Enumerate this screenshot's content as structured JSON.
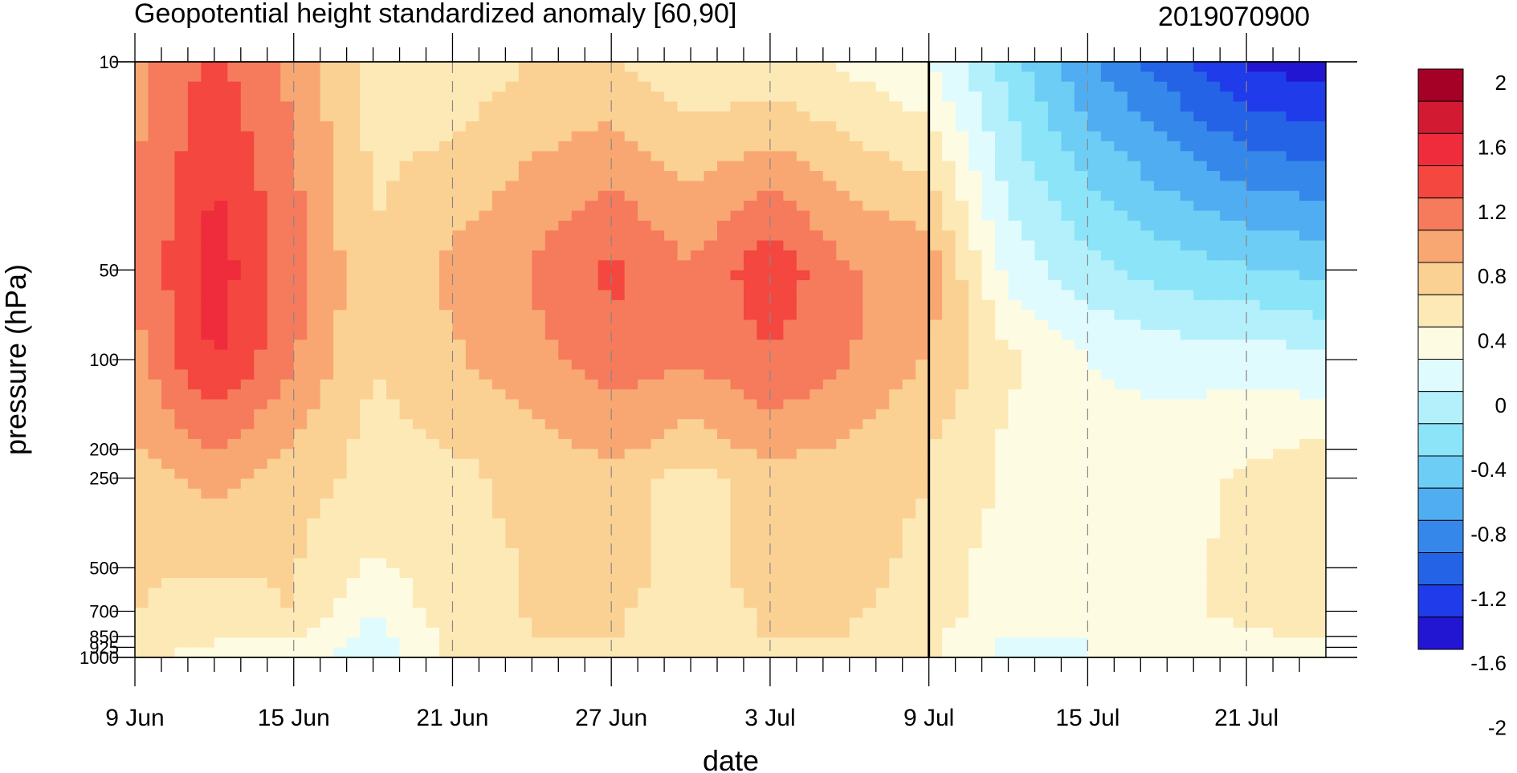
{
  "chart_data": {
    "type": "heatmap",
    "title": "Geopotential height standardized anomaly [60,90]",
    "subtitle": "2019070900",
    "xlabel": "date",
    "ylabel": "pressure (hPa)",
    "y_scale": "log",
    "y_inverted": true,
    "ylim": [
      1000,
      10
    ],
    "xlim": [
      "2019-06-09",
      "2019-07-24"
    ],
    "x_tick_labels": [
      "9 Jun",
      "15 Jun",
      "21 Jun",
      "27 Jun",
      "3 Jul",
      "9 Jul",
      "15 Jul",
      "21 Jul"
    ],
    "x_tick_dates": [
      "2019-06-09",
      "2019-06-15",
      "2019-06-21",
      "2019-06-27",
      "2019-07-03",
      "2019-07-09",
      "2019-07-15",
      "2019-07-21"
    ],
    "y_levels": [
      10,
      50,
      100,
      200,
      250,
      500,
      700,
      850,
      925,
      1000
    ],
    "y_tick_labels": [
      "10",
      "50",
      "100",
      "200",
      "250",
      "500",
      "700",
      "850",
      "925",
      "1000"
    ],
    "analysis_date": "2019-07-09",
    "dates": [
      "2019-06-09",
      "2019-06-12",
      "2019-06-15",
      "2019-06-18",
      "2019-06-21",
      "2019-06-24",
      "2019-06-27",
      "2019-06-30",
      "2019-07-03",
      "2019-07-06",
      "2019-07-09",
      "2019-07-12",
      "2019-07-15",
      "2019-07-18",
      "2019-07-21",
      "2019-07-24"
    ],
    "values": [
      [
        0.9,
        1.3,
        0.9,
        0.4,
        0.3,
        0.5,
        0.5,
        0.3,
        0.3,
        0.2,
        0.0,
        -0.6,
        -1.2,
        -1.6,
        -2.0,
        -2.1
      ],
      [
        1.0,
        1.6,
        1.1,
        0.5,
        0.8,
        1.0,
        1.3,
        1.0,
        1.4,
        1.0,
        0.9,
        -0.1,
        -0.4,
        -0.6,
        -0.7,
        -0.8
      ],
      [
        0.9,
        1.5,
        1.0,
        0.5,
        0.7,
        0.9,
        1.1,
        1.0,
        1.2,
        1.0,
        0.7,
        0.3,
        0.0,
        -0.1,
        -0.1,
        -0.2
      ],
      [
        0.7,
        1.0,
        0.7,
        0.4,
        0.5,
        0.6,
        0.8,
        0.6,
        0.8,
        0.7,
        0.5,
        0.2,
        0.1,
        0.1,
        0.2,
        0.3
      ],
      [
        0.6,
        0.8,
        0.6,
        0.4,
        0.4,
        0.6,
        0.6,
        0.4,
        0.6,
        0.6,
        0.5,
        0.2,
        0.1,
        0.1,
        0.3,
        0.3
      ],
      [
        0.5,
        0.5,
        0.5,
        0.2,
        0.4,
        0.5,
        0.6,
        0.4,
        0.6,
        0.6,
        0.4,
        0.1,
        0.1,
        0.2,
        0.3,
        0.3
      ],
      [
        0.5,
        0.4,
        0.5,
        0.0,
        0.4,
        0.5,
        0.5,
        0.4,
        0.5,
        0.5,
        0.4,
        0.1,
        0.1,
        0.2,
        0.3,
        0.3
      ],
      [
        0.4,
        0.3,
        0.3,
        -0.1,
        0.3,
        0.5,
        0.5,
        0.4,
        0.5,
        0.5,
        0.3,
        0.0,
        0.0,
        0.1,
        0.2,
        0.3
      ],
      [
        0.3,
        0.2,
        0.2,
        -0.2,
        0.3,
        0.4,
        0.4,
        0.3,
        0.4,
        0.4,
        0.3,
        -0.1,
        0.0,
        0.1,
        0.1,
        0.2
      ],
      [
        0.3,
        0.2,
        0.2,
        -0.2,
        0.3,
        0.4,
        0.4,
        0.3,
        0.4,
        0.4,
        0.3,
        -0.1,
        0.0,
        0.1,
        0.1,
        0.2
      ]
    ],
    "colorbar": {
      "tick_labels": [
        "2",
        "1.6",
        "1.2",
        "0.8",
        "0.4",
        "0",
        "-0.4",
        "-0.8",
        "-1.2",
        "-1.6",
        "-2"
      ],
      "colors": [
        "#a50026",
        "#d21a33",
        "#ee2c3c",
        "#f4473f",
        "#f57b5c",
        "#f9a772",
        "#fbd093",
        "#fde9b6",
        "#fefbe3",
        "#e0fbfd",
        "#b3f0fb",
        "#8ce4f8",
        "#6ecdf4",
        "#50adf2",
        "#3588ea",
        "#2463e6",
        "#1f3bea",
        "#2216d2"
      ],
      "levels": [
        -2.2,
        -2.0,
        -1.8,
        -1.6,
        -1.4,
        -1.2,
        -1.0,
        -0.8,
        -0.6,
        -0.4,
        -0.2,
        0.0,
        0.2,
        0.4,
        0.6,
        0.8,
        1.0,
        1.2,
        1.4,
        1.6,
        1.8,
        2.0,
        2.2
      ]
    }
  }
}
